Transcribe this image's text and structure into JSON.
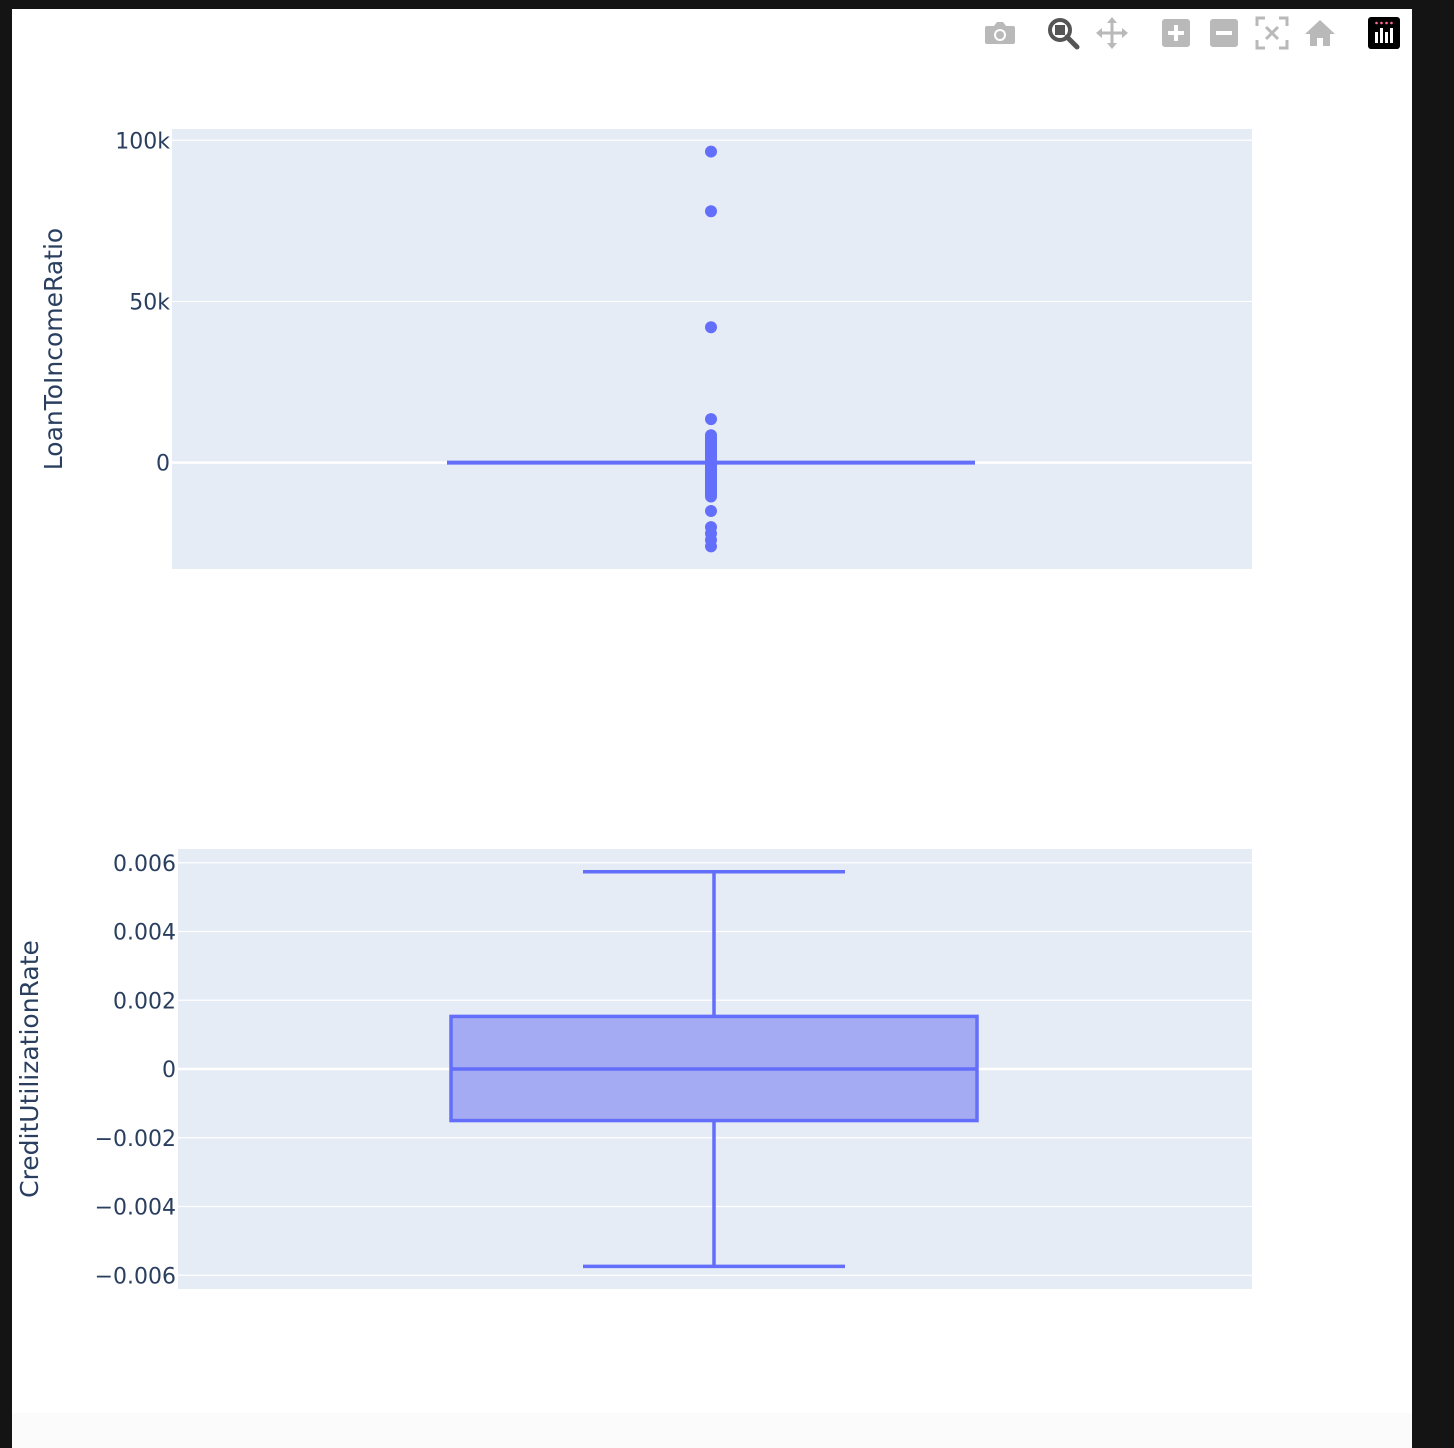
{
  "colors": {
    "trace": "#636efa",
    "box_fill": "#a5abf3",
    "plot_bg": "#e5ecf6",
    "grid": "#ffffff",
    "tick_text": "#2a3f5f",
    "modebar_icon": "#b9b9b9",
    "modebar_active": "#555555"
  },
  "modebar": {
    "buttons": [
      {
        "name": "camera-icon",
        "label": "Download plot as a png"
      },
      {
        "name": "zoom-icon",
        "label": "Zoom"
      },
      {
        "name": "pan-icon",
        "label": "Pan"
      },
      {
        "name": "zoom-in-icon",
        "label": "Zoom in"
      },
      {
        "name": "zoom-out-icon",
        "label": "Zoom out"
      },
      {
        "name": "autoscale-icon",
        "label": "Autoscale"
      },
      {
        "name": "home-icon",
        "label": "Reset axes"
      },
      {
        "name": "plotly-logo-icon",
        "label": "Produced with Plotly"
      }
    ]
  },
  "chart_data": [
    {
      "type": "box",
      "ylabel": "LoanToIncomeRatio",
      "xlabel": "",
      "ylim": [
        -33000,
        103500
      ],
      "yticks": [
        0,
        50000,
        100000
      ],
      "ytick_labels": [
        "0",
        "50k",
        "100k"
      ],
      "grid": true,
      "legend": "none",
      "box": {
        "q1": -150,
        "median": 0,
        "q3": 150,
        "lower_whisker": -400,
        "upper_whisker": 400
      },
      "outliers": [
        96500,
        78000,
        42000,
        13500,
        8500,
        7700,
        7000,
        6300,
        5600,
        4900,
        4200,
        3500,
        2800,
        2100,
        1400,
        700,
        -700,
        -1400,
        -2100,
        -2800,
        -3500,
        -4200,
        -4900,
        -5600,
        -6300,
        -7000,
        -7700,
        -8400,
        -9100,
        -9800,
        -10500,
        -15000,
        -20000,
        -22000,
        -24000,
        -26000
      ]
    },
    {
      "type": "box",
      "ylabel": "CreditUtilizationRate",
      "xlabel": "",
      "ylim": [
        -0.0064,
        0.0064
      ],
      "yticks": [
        -0.006,
        -0.004,
        -0.002,
        0,
        0.002,
        0.004,
        0.006
      ],
      "ytick_labels": [
        "−0.006",
        "−0.004",
        "−0.002",
        "0",
        "0.002",
        "0.004",
        "0.006"
      ],
      "grid": true,
      "legend": "none",
      "box": {
        "q1": -0.0015,
        "median": 0,
        "q3": 0.00153,
        "lower_whisker": -0.00574,
        "upper_whisker": 0.00574
      },
      "outliers": []
    }
  ]
}
